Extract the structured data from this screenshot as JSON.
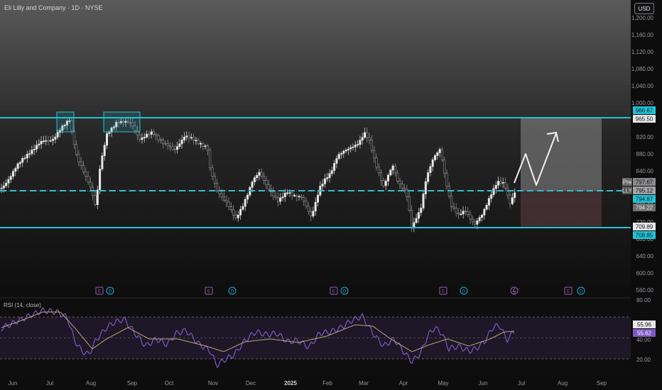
{
  "header": {
    "ticker_title": "Eli Lilly and Company · 1D · NYSE",
    "currency_button": "USD"
  },
  "price_axis": {
    "ticks": [
      "1,200.00",
      "1,160.00",
      "1,120.00",
      "1,080.00",
      "1,040.00",
      "1,000.00",
      "920.00",
      "880.00",
      "840.00",
      "760.00",
      "720.00",
      "680.00",
      "640.00",
      "600.00",
      "560.00"
    ],
    "range": [
      548,
      1215
    ]
  },
  "time_axis": {
    "ticks": [
      {
        "label": "Jun",
        "bold": false
      },
      {
        "label": "Jul",
        "bold": false
      },
      {
        "label": "Aug",
        "bold": false
      },
      {
        "label": "Sep",
        "bold": false
      },
      {
        "label": "Oct",
        "bold": false
      },
      {
        "label": "Nov",
        "bold": false
      },
      {
        "label": "Dec",
        "bold": false
      },
      {
        "label": "2025",
        "bold": true
      },
      {
        "label": "Feb",
        "bold": false
      },
      {
        "label": "Mar",
        "bold": false
      },
      {
        "label": "Apr",
        "bold": false
      },
      {
        "label": "May",
        "bold": false
      },
      {
        "label": "Jun",
        "bold": false
      },
      {
        "label": "Jul",
        "bold": false
      },
      {
        "label": "Aug",
        "bold": false
      },
      {
        "label": "Sep",
        "bold": false
      }
    ]
  },
  "price_badges": {
    "resistance_top": "966.67",
    "resistance_bottom": "965.50",
    "pre_label": "Pre",
    "pre_value": "797.67",
    "ticker_label": "LLY",
    "ticker_value": "795.12",
    "mid_upper": "794.87",
    "mid_lower": "794.22",
    "support_top": "709.89",
    "support_bottom": "708.85"
  },
  "event_markers": [
    {
      "letters": [
        "E",
        "D"
      ]
    },
    {
      "letters": [
        "E"
      ]
    },
    {
      "letters": [
        "D"
      ]
    },
    {
      "letters": [
        "E",
        "D"
      ]
    },
    {
      "letters": [
        "E"
      ]
    },
    {
      "letters": [
        "D"
      ]
    },
    {
      "letters": [
        "E",
        "D"
      ]
    }
  ],
  "rsi": {
    "title": "RSI (14, close)",
    "ticks": [
      "80.00",
      "40.00",
      "20.00"
    ],
    "value_upper": "55.96",
    "value_lower": "55.62",
    "range": [
      15,
      85
    ]
  },
  "colors": {
    "level_line": "#22c3d6",
    "rsi_line": "#7e57c2",
    "rsi_ma": "#b8a979",
    "rsi_band": "#2a1f3d",
    "badge_text_dark": "#131722"
  },
  "icons": {
    "projection_arrow": "up-right-arrow-icon",
    "dividend_marker": "dividend-icon",
    "earnings_marker": "earnings-icon"
  }
}
